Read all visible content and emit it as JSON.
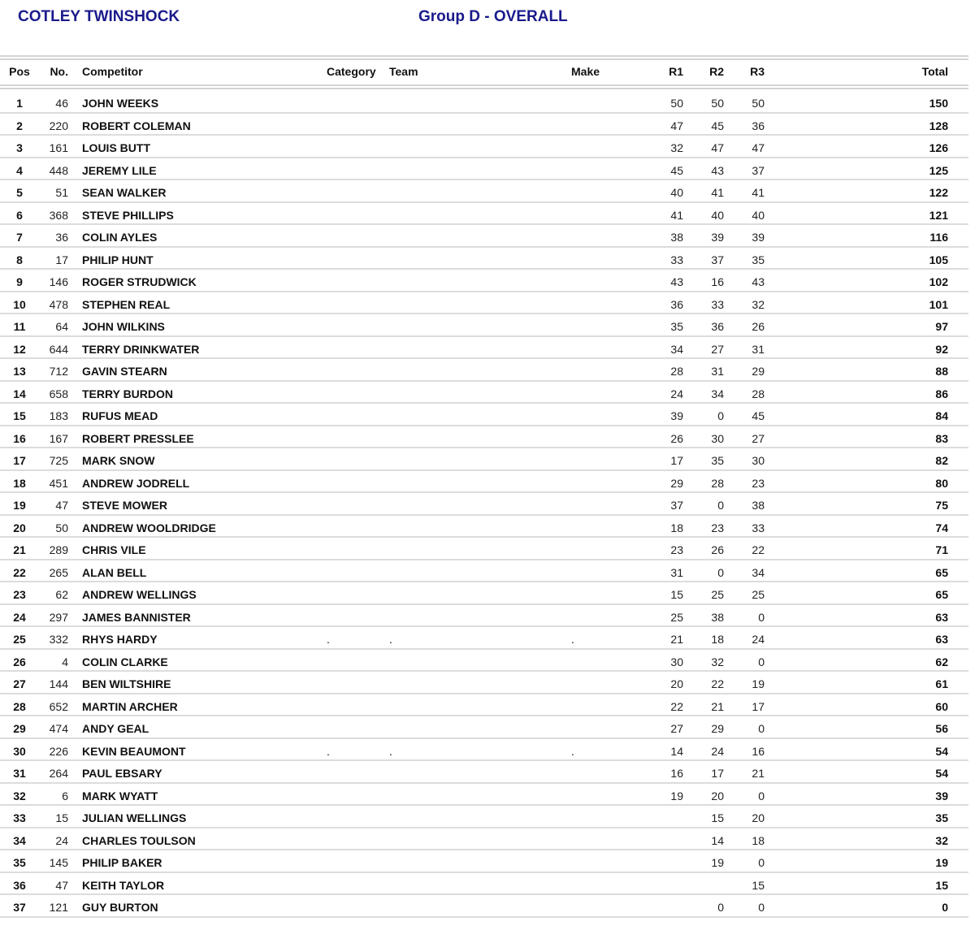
{
  "header": {
    "event": "COTLEY TWINSHOCK",
    "group": "Group D - OVERALL"
  },
  "columns": {
    "pos": "Pos",
    "no": "No.",
    "competitor": "Competitor",
    "category": "Category",
    "team": "Team",
    "make": "Make",
    "r1": "R1",
    "r2": "R2",
    "r3": "R3",
    "total": "Total"
  },
  "rows": [
    {
      "pos": "1",
      "no": "46",
      "competitor": "JOHN WEEKS",
      "category": "",
      "team": "",
      "make": "",
      "r1": "50",
      "r2": "50",
      "r3": "50",
      "total": "150"
    },
    {
      "pos": "2",
      "no": "220",
      "competitor": "ROBERT COLEMAN",
      "category": "",
      "team": "",
      "make": "",
      "r1": "47",
      "r2": "45",
      "r3": "36",
      "total": "128"
    },
    {
      "pos": "3",
      "no": "161",
      "competitor": "LOUIS BUTT",
      "category": "",
      "team": "",
      "make": "",
      "r1": "32",
      "r2": "47",
      "r3": "47",
      "total": "126"
    },
    {
      "pos": "4",
      "no": "448",
      "competitor": "JEREMY LILE",
      "category": "",
      "team": "",
      "make": "",
      "r1": "45",
      "r2": "43",
      "r3": "37",
      "total": "125"
    },
    {
      "pos": "5",
      "no": "51",
      "competitor": "SEAN WALKER",
      "category": "",
      "team": "",
      "make": "",
      "r1": "40",
      "r2": "41",
      "r3": "41",
      "total": "122"
    },
    {
      "pos": "6",
      "no": "368",
      "competitor": "STEVE PHILLIPS",
      "category": "",
      "team": "",
      "make": "",
      "r1": "41",
      "r2": "40",
      "r3": "40",
      "total": "121"
    },
    {
      "pos": "7",
      "no": "36",
      "competitor": "COLIN AYLES",
      "category": "",
      "team": "",
      "make": "",
      "r1": "38",
      "r2": "39",
      "r3": "39",
      "total": "116"
    },
    {
      "pos": "8",
      "no": "17",
      "competitor": "PHILIP HUNT",
      "category": "",
      "team": "",
      "make": "",
      "r1": "33",
      "r2": "37",
      "r3": "35",
      "total": "105"
    },
    {
      "pos": "9",
      "no": "146",
      "competitor": "ROGER STRUDWICK",
      "category": "",
      "team": "",
      "make": "",
      "r1": "43",
      "r2": "16",
      "r3": "43",
      "total": "102"
    },
    {
      "pos": "10",
      "no": "478",
      "competitor": "STEPHEN REAL",
      "category": "",
      "team": "",
      "make": "",
      "r1": "36",
      "r2": "33",
      "r3": "32",
      "total": "101"
    },
    {
      "pos": "11",
      "no": "64",
      "competitor": "JOHN WILKINS",
      "category": "",
      "team": "",
      "make": "",
      "r1": "35",
      "r2": "36",
      "r3": "26",
      "total": "97"
    },
    {
      "pos": "12",
      "no": "644",
      "competitor": "TERRY DRINKWATER",
      "category": "",
      "team": "",
      "make": "",
      "r1": "34",
      "r2": "27",
      "r3": "31",
      "total": "92"
    },
    {
      "pos": "13",
      "no": "712",
      "competitor": "GAVIN STEARN",
      "category": "",
      "team": "",
      "make": "",
      "r1": "28",
      "r2": "31",
      "r3": "29",
      "total": "88"
    },
    {
      "pos": "14",
      "no": "658",
      "competitor": "TERRY BURDON",
      "category": "",
      "team": "",
      "make": "",
      "r1": "24",
      "r2": "34",
      "r3": "28",
      "total": "86"
    },
    {
      "pos": "15",
      "no": "183",
      "competitor": "RUFUS MEAD",
      "category": "",
      "team": "",
      "make": "",
      "r1": "39",
      "r2": "0",
      "r3": "45",
      "total": "84"
    },
    {
      "pos": "16",
      "no": "167",
      "competitor": "ROBERT PRESSLEE",
      "category": "",
      "team": "",
      "make": "",
      "r1": "26",
      "r2": "30",
      "r3": "27",
      "total": "83"
    },
    {
      "pos": "17",
      "no": "725",
      "competitor": "MARK SNOW",
      "category": "",
      "team": "",
      "make": "",
      "r1": "17",
      "r2": "35",
      "r3": "30",
      "total": "82"
    },
    {
      "pos": "18",
      "no": "451",
      "competitor": "ANDREW JODRELL",
      "category": "",
      "team": "",
      "make": "",
      "r1": "29",
      "r2": "28",
      "r3": "23",
      "total": "80"
    },
    {
      "pos": "19",
      "no": "47",
      "competitor": "STEVE MOWER",
      "category": "",
      "team": "",
      "make": "",
      "r1": "37",
      "r2": "0",
      "r3": "38",
      "total": "75"
    },
    {
      "pos": "20",
      "no": "50",
      "competitor": "ANDREW WOOLDRIDGE",
      "category": "",
      "team": "",
      "make": "",
      "r1": "18",
      "r2": "23",
      "r3": "33",
      "total": "74"
    },
    {
      "pos": "21",
      "no": "289",
      "competitor": "CHRIS VILE",
      "category": "",
      "team": "",
      "make": "",
      "r1": "23",
      "r2": "26",
      "r3": "22",
      "total": "71"
    },
    {
      "pos": "22",
      "no": "265",
      "competitor": "ALAN BELL",
      "category": "",
      "team": "",
      "make": "",
      "r1": "31",
      "r2": "0",
      "r3": "34",
      "total": "65"
    },
    {
      "pos": "23",
      "no": "62",
      "competitor": "ANDREW WELLINGS",
      "category": "",
      "team": "",
      "make": "",
      "r1": "15",
      "r2": "25",
      "r3": "25",
      "total": "65"
    },
    {
      "pos": "24",
      "no": "297",
      "competitor": "JAMES BANNISTER",
      "category": "",
      "team": "",
      "make": "",
      "r1": "25",
      "r2": "38",
      "r3": "0",
      "total": "63"
    },
    {
      "pos": "25",
      "no": "332",
      "competitor": "RHYS HARDY",
      "category": ".",
      "team": ".",
      "make": ".",
      "r1": "21",
      "r2": "18",
      "r3": "24",
      "total": "63"
    },
    {
      "pos": "26",
      "no": "4",
      "competitor": "COLIN CLARKE",
      "category": "",
      "team": "",
      "make": "",
      "r1": "30",
      "r2": "32",
      "r3": "0",
      "total": "62"
    },
    {
      "pos": "27",
      "no": "144",
      "competitor": "BEN WILTSHIRE",
      "category": "",
      "team": "",
      "make": "",
      "r1": "20",
      "r2": "22",
      "r3": "19",
      "total": "61"
    },
    {
      "pos": "28",
      "no": "652",
      "competitor": "MARTIN ARCHER",
      "category": "",
      "team": "",
      "make": "",
      "r1": "22",
      "r2": "21",
      "r3": "17",
      "total": "60"
    },
    {
      "pos": "29",
      "no": "474",
      "competitor": "ANDY GEAL",
      "category": "",
      "team": "",
      "make": "",
      "r1": "27",
      "r2": "29",
      "r3": "0",
      "total": "56"
    },
    {
      "pos": "30",
      "no": "226",
      "competitor": "KEVIN BEAUMONT",
      "category": ".",
      "team": ".",
      "make": ".",
      "r1": "14",
      "r2": "24",
      "r3": "16",
      "total": "54"
    },
    {
      "pos": "31",
      "no": "264",
      "competitor": "PAUL EBSARY",
      "category": "",
      "team": "",
      "make": "",
      "r1": "16",
      "r2": "17",
      "r3": "21",
      "total": "54"
    },
    {
      "pos": "32",
      "no": "6",
      "competitor": "MARK WYATT",
      "category": "",
      "team": "",
      "make": "",
      "r1": "19",
      "r2": "20",
      "r3": "0",
      "total": "39"
    },
    {
      "pos": "33",
      "no": "15",
      "competitor": "JULIAN WELLINGS",
      "category": "",
      "team": "",
      "make": "",
      "r1": "",
      "r2": "15",
      "r3": "20",
      "total": "35"
    },
    {
      "pos": "34",
      "no": "24",
      "competitor": "CHARLES TOULSON",
      "category": "",
      "team": "",
      "make": "",
      "r1": "",
      "r2": "14",
      "r3": "18",
      "total": "32"
    },
    {
      "pos": "35",
      "no": "145",
      "competitor": "PHILIP BAKER",
      "category": "",
      "team": "",
      "make": "",
      "r1": "",
      "r2": "19",
      "r3": "0",
      "total": "19"
    },
    {
      "pos": "36",
      "no": "47",
      "competitor": "KEITH TAYLOR",
      "category": "",
      "team": "",
      "make": "",
      "r1": "",
      "r2": "",
      "r3": "15",
      "total": "15"
    },
    {
      "pos": "37",
      "no": "121",
      "competitor": "GUY BURTON",
      "category": "",
      "team": "",
      "make": "",
      "r1": "",
      "r2": "0",
      "r3": "0",
      "total": "0"
    }
  ]
}
